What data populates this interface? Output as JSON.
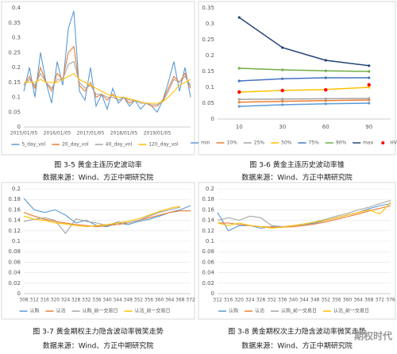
{
  "chart_data": [
    {
      "type": "line",
      "caption": "图 3-5 黄金主连历史波动率",
      "source": "数据来源：Wind、方正中期研究院",
      "grid": false,
      "markers": false,
      "categories": [
        "2015/01/05",
        null,
        null,
        null,
        null,
        null,
        "2016/01/05",
        null,
        null,
        null,
        null,
        null,
        "2017/01/05",
        null,
        null,
        null,
        null,
        null,
        "2018/01/05",
        null,
        null,
        null,
        null,
        null,
        "2019/01/05",
        null,
        null,
        null,
        null,
        null,
        null
      ],
      "ylim": [
        0,
        0.4
      ],
      "yticks": [
        0,
        0.05,
        0.1,
        0.15,
        0.2,
        0.25,
        0.3,
        0.35,
        0.4
      ],
      "series": [
        {
          "name": "5_day_vol",
          "color": "#5b9bd5",
          "values": [
            0.12,
            0.2,
            0.1,
            0.25,
            0.15,
            0.08,
            0.22,
            0.14,
            0.33,
            0.39,
            0.12,
            0.09,
            0.2,
            0.07,
            0.11,
            0.06,
            0.13,
            0.08,
            0.1,
            0.07,
            0.09,
            0.06,
            0.08,
            0.07,
            0.05,
            0.09,
            0.15,
            0.22,
            0.12,
            0.2,
            0.1
          ]
        },
        {
          "name": "20_day_vol",
          "color": "#ed7d31",
          "values": [
            0.14,
            0.17,
            0.13,
            0.2,
            0.15,
            0.12,
            0.18,
            0.16,
            0.25,
            0.27,
            0.14,
            0.12,
            0.15,
            0.1,
            0.11,
            0.09,
            0.11,
            0.09,
            0.1,
            0.08,
            0.09,
            0.08,
            0.08,
            0.07,
            0.07,
            0.09,
            0.13,
            0.17,
            0.15,
            0.18,
            0.13
          ]
        },
        {
          "name": "40_day_vol",
          "color": "#a5a5a5",
          "values": [
            0.14,
            0.16,
            0.14,
            0.18,
            0.15,
            0.13,
            0.16,
            0.16,
            0.21,
            0.22,
            0.15,
            0.13,
            0.14,
            0.11,
            0.11,
            0.1,
            0.1,
            0.09,
            0.1,
            0.09,
            0.09,
            0.08,
            0.08,
            0.075,
            0.075,
            0.085,
            0.12,
            0.16,
            0.15,
            0.17,
            0.14
          ]
        },
        {
          "name": "120_day_vol",
          "color": "#ffc000",
          "values": [
            0.15,
            0.15,
            0.15,
            0.16,
            0.15,
            0.15,
            0.15,
            0.16,
            0.17,
            0.18,
            0.16,
            0.15,
            0.14,
            0.13,
            0.12,
            0.11,
            0.105,
            0.1,
            0.1,
            0.095,
            0.09,
            0.085,
            0.08,
            0.08,
            0.08,
            0.085,
            0.1,
            0.12,
            0.14,
            0.15,
            0.16
          ]
        }
      ]
    },
    {
      "type": "line",
      "caption": "图 3-6 黄金主连历史波动率锥",
      "source": "数据来源：Wind、方正中期研究院",
      "grid": false,
      "markers": true,
      "categories": [
        "10",
        "30",
        "60",
        "90"
      ],
      "ylim": [
        0,
        0.35
      ],
      "yticks": [
        0,
        0.05,
        0.1,
        0.15,
        0.2,
        0.25,
        0.3,
        0.35
      ],
      "series": [
        {
          "name": "min",
          "color": "#5b9bd5",
          "values": [
            0.04,
            0.045,
            0.048,
            0.05
          ]
        },
        {
          "name": "10%",
          "color": "#ed7d31",
          "values": [
            0.053,
            0.056,
            0.058,
            0.06
          ]
        },
        {
          "name": "25%",
          "color": "#a5a5a5",
          "values": [
            0.062,
            0.063,
            0.064,
            0.065
          ]
        },
        {
          "name": "50%",
          "color": "#ffc000",
          "values": [
            0.085,
            0.09,
            0.093,
            0.1
          ]
        },
        {
          "name": "75%",
          "color": "#4472c4",
          "values": [
            0.12,
            0.127,
            0.13,
            0.13
          ]
        },
        {
          "name": "90%",
          "color": "#70ad47",
          "values": [
            0.16,
            0.155,
            0.152,
            0.15
          ]
        },
        {
          "name": "max",
          "color": "#264478",
          "values": [
            0.32,
            0.225,
            0.185,
            0.168
          ]
        },
        {
          "name": "HV",
          "color": "#ff0000",
          "marker_only": true,
          "values": [
            0.085,
            0.09,
            0.092,
            0.108
          ]
        }
      ]
    },
    {
      "type": "line",
      "caption": "图 3-7 黄金期权主力隐含波动率微笑走势",
      "source": "数据来源：Wind、方正中期研究院",
      "grid": true,
      "markers": false,
      "categories": [
        "308",
        "312",
        "316",
        "320",
        "324",
        "328",
        "332",
        "336",
        "340",
        "344",
        "348",
        "352",
        "356",
        "360",
        "364",
        "368",
        "372"
      ],
      "ylim": [
        0,
        0.2
      ],
      "yticks": [
        0,
        0.02,
        0.04,
        0.06,
        0.08,
        0.1,
        0.12,
        0.14,
        0.16,
        0.18,
        0.2
      ],
      "series": [
        {
          "name": "认购",
          "color": "#5b9bd5",
          "values": [
            0.182,
            0.16,
            0.155,
            0.16,
            0.15,
            0.135,
            0.14,
            0.13,
            0.128,
            0.135,
            0.132,
            0.138,
            0.142,
            0.148,
            0.155,
            0.16,
            0.168
          ]
        },
        {
          "name": "认沽",
          "color": "#ed7d31",
          "values": [
            0.155,
            0.148,
            0.142,
            0.138,
            0.135,
            0.132,
            0.13,
            0.128,
            0.13,
            0.132,
            0.135,
            0.14,
            0.145,
            0.15,
            0.155,
            0.158,
            0.158
          ]
        },
        {
          "name": "认购_前一交易日",
          "color": "#a5a5a5",
          "values": [
            0.138,
            0.142,
            0.145,
            0.14,
            0.115,
            0.143,
            0.138,
            0.135,
            0.13,
            0.137,
            0.135,
            0.14,
            0.148,
            0.155,
            0.16,
            0.165,
            null
          ]
        },
        {
          "name": "认沽_前一交易日",
          "color": "#ffc000",
          "values": [
            0.148,
            0.142,
            0.14,
            0.135,
            0.133,
            0.13,
            0.128,
            0.13,
            0.132,
            0.135,
            0.138,
            0.143,
            0.15,
            0.157,
            0.163,
            0.167,
            null
          ]
        }
      ]
    },
    {
      "type": "line",
      "caption": "图 3-8 黄金期权次主力隐含波动率微笑走势",
      "source": "数据来源：Wind、方正中期研究院",
      "grid": true,
      "markers": false,
      "categories": [
        "312",
        "316",
        "320",
        "324",
        "328",
        "332",
        "336",
        "340",
        "344",
        "348",
        "352",
        "356",
        "360",
        "364",
        "368",
        "372",
        "376"
      ],
      "ylim": [
        0,
        0.2
      ],
      "yticks": [
        0,
        0.02,
        0.04,
        0.06,
        0.08,
        0.1,
        0.12,
        0.14,
        0.16,
        0.18,
        0.2
      ],
      "series": [
        {
          "name": "认购",
          "color": "#5b9bd5",
          "values": [
            0.155,
            0.12,
            0.13,
            0.13,
            0.125,
            0.128,
            0.127,
            0.13,
            0.132,
            0.135,
            0.14,
            0.145,
            0.15,
            0.155,
            0.162,
            0.168,
            0.172
          ]
        },
        {
          "name": "认沽",
          "color": "#ed7d31",
          "values": [
            0.135,
            0.135,
            0.132,
            0.13,
            0.128,
            0.127,
            0.127,
            0.128,
            0.13,
            0.133,
            0.137,
            0.142,
            0.147,
            0.152,
            0.158,
            0.163,
            0.168
          ]
        },
        {
          "name": "认购_前一交易日",
          "color": "#a5a5a5",
          "values": [
            0.14,
            0.145,
            0.14,
            0.148,
            0.145,
            0.13,
            0.128,
            0.13,
            0.133,
            0.137,
            0.142,
            0.148,
            0.153,
            0.16,
            0.165,
            0.172,
            0.178
          ]
        },
        {
          "name": "认沽_前一交易日",
          "color": "#ffc000",
          "values": [
            0.135,
            0.13,
            0.135,
            0.13,
            0.128,
            0.125,
            0.127,
            0.13,
            0.133,
            0.137,
            0.14,
            0.145,
            0.15,
            0.155,
            0.16,
            0.152,
            0.175
          ]
        }
      ]
    }
  ],
  "watermark": "期权时代"
}
